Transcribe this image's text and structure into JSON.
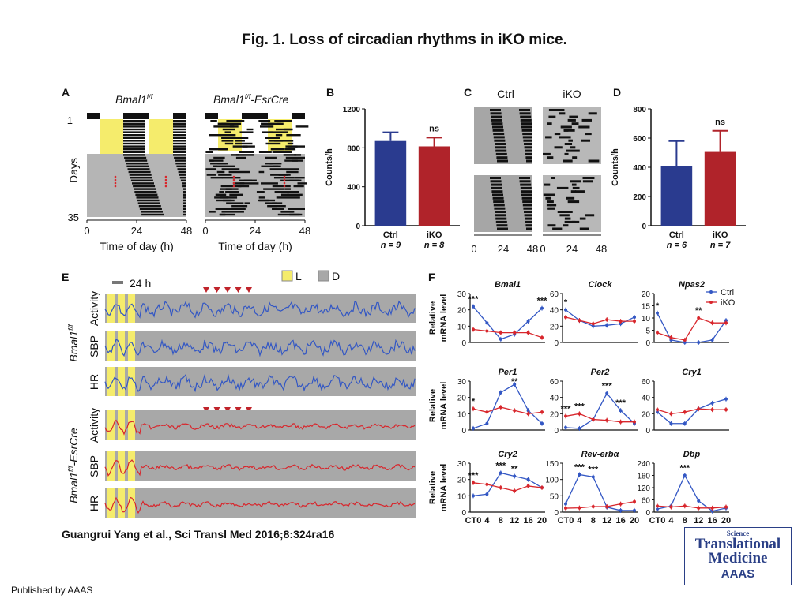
{
  "title": "Fig. 1. Loss of circadian rhythms in iKO mice.",
  "citation": "Guangrui Yang et al., Sci Transl Med 2016;8:324ra16",
  "published": "Published by AAAS",
  "logo": {
    "line1": "Science",
    "line2": "Translational",
    "line3": "Medicine",
    "line4": "AAAS"
  },
  "colors": {
    "ctrl": "#2a3b8f",
    "iko": "#b0232a",
    "light": "#f5ec6c",
    "dark": "#a8a8a8"
  },
  "panelA": {
    "letter": "A",
    "title_left": "Bmal1",
    "title_left_sup": "f/f",
    "title_right": "Bmal1",
    "title_right_sup": "f/f",
    "title_right_suffix": "-EsrCre",
    "ylabel": "Days",
    "ytick_top": "1",
    "ytick_bottom": "35",
    "xticks": [
      "0",
      "24",
      "48"
    ],
    "xlabel": "Time of day (h)"
  },
  "panelC": {
    "letter": "C",
    "label_left": "Ctrl",
    "label_right": "iKO",
    "xticks": [
      "0",
      "24",
      "48"
    ]
  },
  "panelE": {
    "letter": "E",
    "scale_label": "24 h",
    "legend_light": "L",
    "legend_dark": "D",
    "group_top": "Bmal1",
    "group_top_sup": "f/f",
    "group_bottom": "Bmal1",
    "group_bottom_sup": "f/f",
    "group_bottom_suffix": "-EsrCre",
    "rows": [
      "Activity",
      "SBP",
      "HR"
    ]
  },
  "chart_data": [
    {
      "panel": "B",
      "type": "bar",
      "categories": [
        "Ctrl",
        "iKO"
      ],
      "n_labels": [
        "n = 9",
        "n = 8"
      ],
      "values": [
        870,
        815
      ],
      "errors": [
        90,
        90
      ],
      "annotation": "ns",
      "ylabel": "Counts/h",
      "ylim": [
        0,
        1200
      ],
      "yticks": [
        0,
        400,
        800,
        1200
      ]
    },
    {
      "panel": "D",
      "type": "bar",
      "categories": [
        "Ctrl",
        "iKO"
      ],
      "n_labels": [
        "n = 6",
        "n = 7"
      ],
      "values": [
        410,
        505
      ],
      "errors": [
        170,
        145
      ],
      "annotation": "ns",
      "ylabel": "Counts/h",
      "ylim": [
        0,
        800
      ],
      "yticks": [
        0,
        200,
        400,
        600,
        800
      ]
    },
    {
      "panel": "F",
      "type": "line",
      "ylabel": "Relative mRNA level",
      "x": [
        0,
        4,
        8,
        12,
        16,
        20
      ],
      "xticks": [
        "CT0",
        "4",
        "8",
        "12",
        "16",
        "20"
      ],
      "legend": [
        "Ctrl",
        "iKO"
      ],
      "genes": [
        {
          "name": "Bmal1",
          "ylim": [
            0,
            30
          ],
          "yticks": [
            0,
            10,
            20,
            30
          ],
          "series": [
            {
              "name": "Ctrl",
              "values": [
                22,
                12,
                2,
                5,
                13,
                21
              ]
            },
            {
              "name": "iKO",
              "values": [
                8,
                7,
                6,
                6,
                6,
                3
              ]
            }
          ],
          "stars": [
            {
              "text": "***",
              "x": 0
            },
            {
              "text": "***",
              "x": 20
            }
          ]
        },
        {
          "name": "Clock",
          "ylim": [
            0,
            60
          ],
          "yticks": [
            0,
            20,
            40,
            60
          ],
          "series": [
            {
              "name": "Ctrl",
              "values": [
                40,
                27,
                20,
                21,
                23,
                31
              ]
            },
            {
              "name": "iKO",
              "values": [
                31,
                27,
                23,
                28,
                26,
                26
              ]
            }
          ],
          "stars": [
            {
              "text": "*",
              "x": 0
            }
          ]
        },
        {
          "name": "Npas2",
          "ylim": [
            0,
            20
          ],
          "yticks": [
            0,
            5,
            10,
            15,
            20
          ],
          "series": [
            {
              "name": "Ctrl",
              "values": [
                12,
                1,
                0,
                0,
                1,
                9
              ]
            },
            {
              "name": "iKO",
              "values": [
                4,
                2,
                1,
                10,
                8,
                8
              ]
            }
          ],
          "stars": [
            {
              "text": "*",
              "x": 0
            },
            {
              "text": "**",
              "x": 12
            }
          ]
        },
        {
          "name": "Per1",
          "ylim": [
            0,
            30
          ],
          "yticks": [
            0,
            10,
            20,
            30
          ],
          "series": [
            {
              "name": "Ctrl",
              "values": [
                1,
                4,
                23,
                28,
                12,
                4
              ]
            },
            {
              "name": "iKO",
              "values": [
                13,
                11,
                14,
                12,
                10,
                11
              ]
            }
          ],
          "stars": [
            {
              "text": "*",
              "x": 0
            },
            {
              "text": "**",
              "x": 12
            }
          ]
        },
        {
          "name": "Per2",
          "ylim": [
            0,
            60
          ],
          "yticks": [
            0,
            20,
            40,
            60
          ],
          "series": [
            {
              "name": "Ctrl",
              "values": [
                3,
                2,
                13,
                45,
                24,
                8
              ]
            },
            {
              "name": "iKO",
              "values": [
                17,
                20,
                13,
                12,
                10,
                10
              ]
            }
          ],
          "stars": [
            {
              "text": "***",
              "x": 0
            },
            {
              "text": "***",
              "x": 4
            },
            {
              "text": "***",
              "x": 12
            },
            {
              "text": "***",
              "x": 16
            }
          ]
        },
        {
          "name": "Cry1",
          "ylim": [
            0,
            60
          ],
          "yticks": [
            0,
            20,
            40,
            60
          ],
          "series": [
            {
              "name": "Ctrl",
              "values": [
                22,
                8,
                8,
                26,
                33,
                38
              ]
            },
            {
              "name": "iKO",
              "values": [
                25,
                20,
                22,
                26,
                25,
                25
              ]
            }
          ],
          "stars": []
        },
        {
          "name": "Cry2",
          "ylim": [
            0,
            30
          ],
          "yticks": [
            0,
            10,
            20,
            30
          ],
          "series": [
            {
              "name": "Ctrl",
              "values": [
                10,
                11,
                24,
                22,
                20,
                15
              ]
            },
            {
              "name": "iKO",
              "values": [
                18,
                17,
                15,
                13,
                16,
                15
              ]
            }
          ],
          "stars": [
            {
              "text": "***",
              "x": 0
            },
            {
              "text": "***",
              "x": 8
            },
            {
              "text": "**",
              "x": 12
            }
          ]
        },
        {
          "name": "Rev-erbα",
          "ylim": [
            0,
            150
          ],
          "yticks": [
            0,
            50,
            100,
            150
          ],
          "series": [
            {
              "name": "Ctrl",
              "values": [
                25,
                115,
                108,
                15,
                5,
                5
              ]
            },
            {
              "name": "iKO",
              "values": [
                12,
                13,
                17,
                17,
                25,
                32
              ]
            }
          ],
          "stars": [
            {
              "text": "***",
              "x": 4
            },
            {
              "text": "***",
              "x": 8
            }
          ]
        },
        {
          "name": "Dbp",
          "ylim": [
            0,
            240
          ],
          "yticks": [
            0,
            60,
            120,
            180,
            240
          ],
          "series": [
            {
              "name": "Ctrl",
              "values": [
                15,
                30,
                180,
                55,
                5,
                20
              ]
            },
            {
              "name": "iKO",
              "values": [
                30,
                25,
                30,
                20,
                20,
                25
              ]
            }
          ],
          "stars": [
            {
              "text": "***",
              "x": 8
            }
          ]
        }
      ]
    }
  ]
}
